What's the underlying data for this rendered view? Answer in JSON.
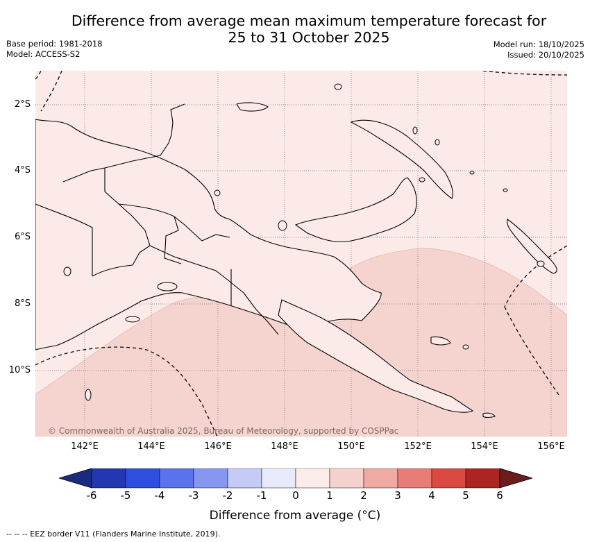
{
  "title": {
    "line1": "Difference from average mean maximum temperature forecast for",
    "line2": "25 to 31 October 2025"
  },
  "meta": {
    "base_period": "Base period: 1981-2018",
    "model": "Model: ACCESS-S2",
    "model_run": "Model run: 18/10/2025",
    "issued": "Issued: 20/10/2025"
  },
  "map": {
    "lat_labels": [
      "2°S",
      "4°S",
      "6°S",
      "8°S",
      "10°S"
    ],
    "lon_labels": [
      "142°E",
      "144°E",
      "146°E",
      "148°E",
      "150°E",
      "152°E",
      "154°E",
      "156°E"
    ],
    "copyright": "© Commonwealth of Australia 2025, Bureau of Meteorology, supported by COSPPac",
    "colors": {
      "anomaly_0_to_1": "#fbeae8",
      "anomaly_1_to_2": "#f5d4d0",
      "coastline": "#000000",
      "eez": "#000000",
      "gridline": "#6b6b6b"
    }
  },
  "colorbar": {
    "tick_labels": [
      "-6",
      "-5",
      "-4",
      "-3",
      "-2",
      "-1",
      "0",
      "1",
      "2",
      "3",
      "4",
      "5",
      "6"
    ],
    "label": "Difference from average (°C)",
    "under_color": "#1a2a80",
    "over_color": "#6b1c1c",
    "colors": [
      "#2337b0",
      "#2e4ee0",
      "#5a72ea",
      "#8797ef",
      "#c3cbf6",
      "#e7eafb",
      "#fcebe8",
      "#f5d1cd",
      "#efaaa4",
      "#e77d76",
      "#da4a40",
      "#ab2622"
    ]
  },
  "legend": {
    "eez": "-- --  -- EEZ border V11 (Flanders Marine Institute, 2019)."
  }
}
